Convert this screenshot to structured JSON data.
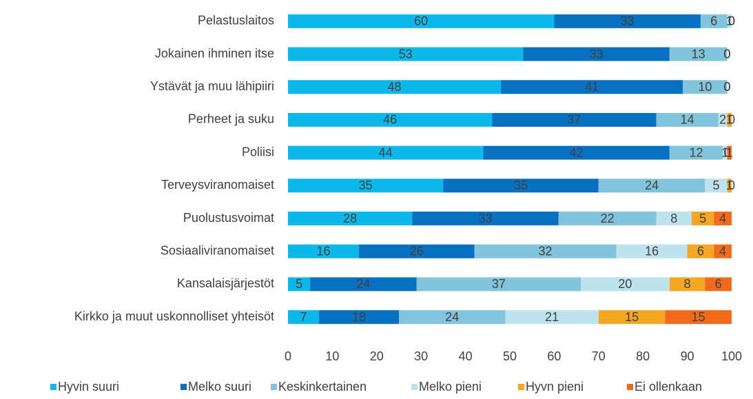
{
  "chart_data": {
    "type": "stacked_bar_horizontal",
    "categories": [
      "Pelastuslaitos",
      "Jokainen ihminen itse",
      "Ystävät ja muu lähipiiri",
      "Perheet ja suku",
      "Poliisi",
      "Terveysviranomaiset",
      "Puolustusvoimat",
      "Sosiaaliviranomaiset",
      "Kansalaisjärjestöt",
      "Kirkko ja muut uskonnolliset yhteisöt"
    ],
    "series": [
      {
        "name": "Hyvin suuri",
        "color": "#0cb8ea",
        "values": [
          60,
          53,
          48,
          46,
          44,
          35,
          28,
          16,
          5,
          7
        ]
      },
      {
        "name": "Melko suuri",
        "color": "#0770c0",
        "values": [
          33,
          33,
          41,
          37,
          42,
          35,
          33,
          26,
          24,
          18
        ]
      },
      {
        "name": "Keskinkertainen",
        "color": "#82c4dc",
        "values": [
          6,
          13,
          10,
          14,
          12,
          24,
          22,
          32,
          37,
          24
        ]
      },
      {
        "name": "Melko pieni",
        "color": "#bde3ef",
        "values": [
          1,
          0,
          0,
          2,
          1,
          5,
          8,
          16,
          20,
          21
        ]
      },
      {
        "name": "Hyvn pieni",
        "color": "#f5a623",
        "values": [
          0,
          0,
          0,
          1,
          0,
          1,
          5,
          6,
          8,
          15
        ]
      },
      {
        "name": "Ei ollenkaan",
        "color": "#f26b1d",
        "values": [
          0,
          0,
          0,
          0,
          1,
          0,
          4,
          4,
          6,
          15
        ]
      }
    ],
    "xlim": [
      0,
      100
    ],
    "xticks": [
      0,
      10,
      20,
      30,
      40,
      50,
      60,
      70,
      80,
      90,
      100
    ],
    "grid": false,
    "legend": "bottom"
  }
}
